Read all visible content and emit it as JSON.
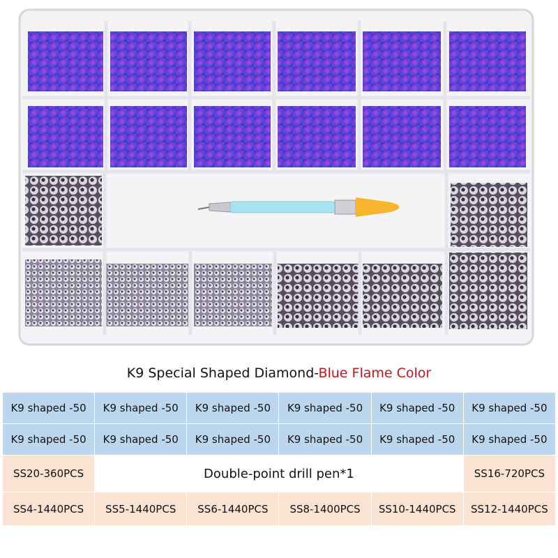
{
  "header": {
    "title": "K9 Special Shaped Diamond-",
    "title_highlight": "Blue Flame Color"
  },
  "table": {
    "rows": [
      [
        "K9 shaped -50",
        "K9 shaped -50",
        "K9 shaped -50",
        "K9 shaped -50",
        "K9 shaped -50",
        "K9 shaped -50"
      ],
      [
        "K9 shaped -50",
        "K9 shaped -50",
        "K9 shaped -50",
        "K9 shaped -50",
        "K9 shaped -50",
        "K9 shaped -50"
      ],
      [
        "SS20-360PCS",
        "Double-point drill pen*1",
        "SS16-720PCS"
      ],
      [
        "SS4-1440PCS",
        "SS5-1440PCS",
        "SS6-1440PCS",
        "SS8-1400PCS",
        "SS10-1440PCS",
        "SS12-1440PCS"
      ]
    ]
  }
}
